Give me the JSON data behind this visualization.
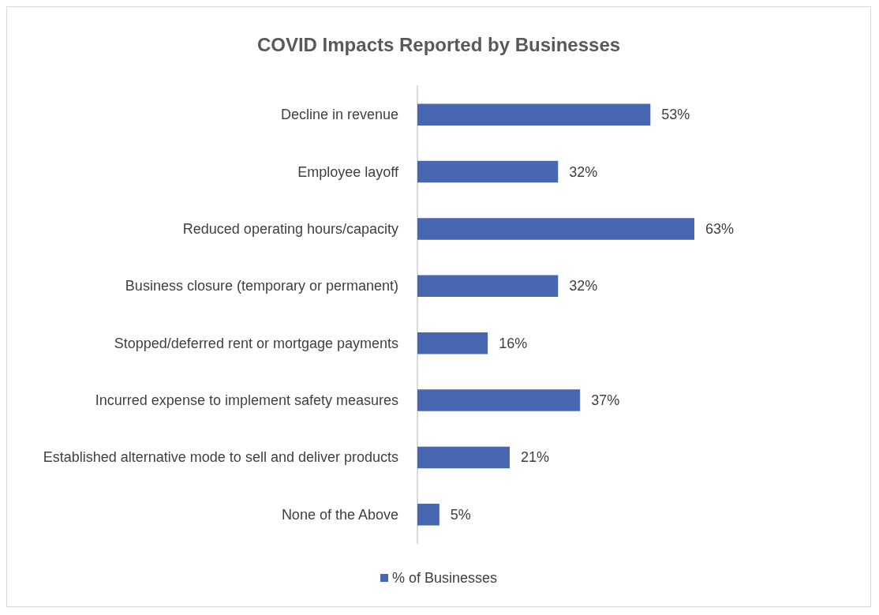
{
  "chart_data": {
    "type": "bar",
    "orientation": "horizontal",
    "title": "COVID Impacts Reported by Businesses",
    "categories": [
      "Decline in revenue",
      "Employee layoff",
      "Reduced operating hours/capacity",
      "Business closure (temporary or permanent)",
      "Stopped/deferred rent or mortgage payments",
      "Incurred expense to implement safety measures",
      "Established alternative mode to sell and deliver products",
      "None of the Above"
    ],
    "series": [
      {
        "name": "% of Businesses",
        "color": "#4767b0",
        "values": [
          53,
          32,
          63,
          32,
          16,
          37,
          21,
          5
        ],
        "value_labels": [
          "53%",
          "32%",
          "63%",
          "32%",
          "16%",
          "37%",
          "21%",
          "5%"
        ]
      }
    ],
    "legend": "bottom",
    "grid": false
  }
}
